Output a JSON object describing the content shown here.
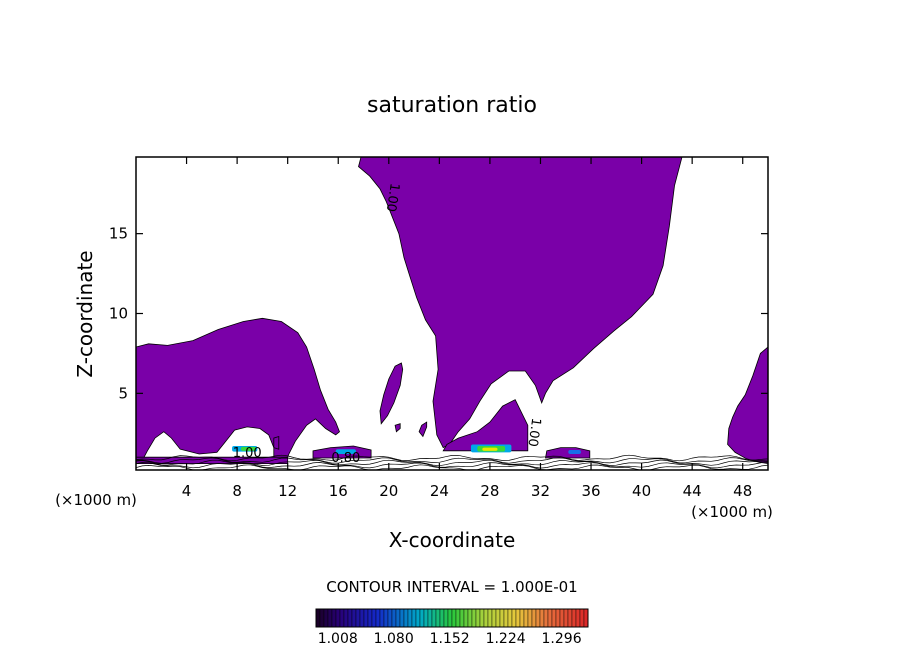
{
  "chart_data": {
    "type": "contour",
    "title": "saturation ratio",
    "xlabel": "X-coordinate",
    "ylabel": "Z-coordinate",
    "x_unit_left": "(×1000 m)",
    "x_unit_right": "(×1000 m)",
    "xlim": [
      0,
      50
    ],
    "ylim": [
      0.2,
      19.8
    ],
    "x_ticks": [
      4,
      8,
      12,
      16,
      20,
      24,
      28,
      32,
      36,
      40,
      44,
      48
    ],
    "y_ticks": [
      5,
      10,
      15
    ],
    "grid": false,
    "fill_color": "#7a00a8",
    "contour_interval_label": "CONTOUR INTERVAL = 1.000E-01",
    "colorbar_ticks": [
      "1.008",
      "1.080",
      "1.152",
      "1.224",
      "1.296"
    ],
    "colorbar_range": [
      0.98,
      1.33
    ],
    "contour_labels": [
      {
        "text": "1.00",
        "x": 20.0,
        "z": 17.3,
        "rotate": 98
      },
      {
        "text": "1.00",
        "x": 31.2,
        "z": 2.6,
        "rotate": 98
      },
      {
        "text": "1.00",
        "x": 8.8,
        "z": 1.0,
        "rotate": 0
      },
      {
        "text": "0.80",
        "x": 16.6,
        "z": 0.7,
        "rotate": 0
      }
    ],
    "regions": [
      {
        "name": "left-cloud",
        "points": [
          [
            0.0,
            0.6
          ],
          [
            0.0,
            7.9
          ],
          [
            1.0,
            8.1
          ],
          [
            2.5,
            8.0
          ],
          [
            4.5,
            8.3
          ],
          [
            6.5,
            9.0
          ],
          [
            8.5,
            9.5
          ],
          [
            10.0,
            9.7
          ],
          [
            11.5,
            9.5
          ],
          [
            12.8,
            8.8
          ],
          [
            13.5,
            7.9
          ],
          [
            14.1,
            6.5
          ],
          [
            14.6,
            5.2
          ],
          [
            15.2,
            4.0
          ],
          [
            15.8,
            3.2
          ],
          [
            16.1,
            2.6
          ],
          [
            15.8,
            2.4
          ],
          [
            15.0,
            2.8
          ],
          [
            14.2,
            3.4
          ],
          [
            13.5,
            3.0
          ],
          [
            12.6,
            2.0
          ],
          [
            12.1,
            1.2
          ],
          [
            11.8,
            0.6
          ],
          [
            10.9,
            0.6
          ],
          [
            10.9,
            1.6
          ],
          [
            10.5,
            2.4
          ],
          [
            9.8,
            2.8
          ],
          [
            8.8,
            2.9
          ],
          [
            7.8,
            2.7
          ],
          [
            7.0,
            1.9
          ],
          [
            6.4,
            1.3
          ],
          [
            5.0,
            1.2
          ],
          [
            3.5,
            1.5
          ],
          [
            2.8,
            2.2
          ],
          [
            2.2,
            2.6
          ],
          [
            1.5,
            2.2
          ],
          [
            0.9,
            1.4
          ],
          [
            0.5,
            0.8
          ]
        ]
      },
      {
        "name": "left-cloud-base",
        "points": [
          [
            0.0,
            0.6
          ],
          [
            12.0,
            0.6
          ],
          [
            12.0,
            1.0
          ],
          [
            0.0,
            1.0
          ]
        ]
      },
      {
        "name": "central-column",
        "points": [
          [
            17.8,
            19.8
          ],
          [
            43.2,
            19.8
          ],
          [
            42.6,
            18.0
          ],
          [
            42.2,
            15.5
          ],
          [
            41.7,
            13.0
          ],
          [
            40.9,
            11.2
          ],
          [
            39.2,
            9.8
          ],
          [
            37.8,
            8.9
          ],
          [
            36.2,
            7.8
          ],
          [
            34.6,
            6.6
          ],
          [
            33.0,
            5.8
          ],
          [
            32.4,
            5.0
          ],
          [
            32.1,
            4.4
          ],
          [
            31.6,
            5.5
          ],
          [
            30.8,
            6.4
          ],
          [
            29.5,
            6.4
          ],
          [
            28.1,
            5.6
          ],
          [
            27.2,
            4.5
          ],
          [
            26.4,
            3.4
          ],
          [
            25.5,
            2.6
          ],
          [
            24.8,
            1.8
          ],
          [
            24.3,
            1.6
          ],
          [
            23.8,
            2.4
          ],
          [
            23.5,
            4.5
          ],
          [
            23.9,
            6.5
          ],
          [
            23.7,
            8.6
          ],
          [
            22.9,
            9.6
          ],
          [
            22.2,
            11.0
          ],
          [
            21.6,
            12.5
          ],
          [
            21.2,
            13.5
          ],
          [
            20.8,
            15.0
          ],
          [
            20.3,
            16.0
          ],
          [
            19.8,
            17.0
          ],
          [
            19.3,
            17.8
          ],
          [
            18.5,
            18.6
          ],
          [
            17.6,
            19.2
          ]
        ]
      },
      {
        "name": "central-base",
        "points": [
          [
            24.3,
            1.4
          ],
          [
            31.0,
            1.4
          ],
          [
            31.0,
            3.0
          ],
          [
            30.0,
            4.6
          ],
          [
            29.0,
            4.2
          ],
          [
            28.0,
            3.2
          ],
          [
            27.0,
            2.6
          ],
          [
            25.5,
            2.2
          ],
          [
            24.6,
            1.8
          ]
        ]
      },
      {
        "name": "blob-19",
        "points": [
          [
            19.4,
            3.1
          ],
          [
            19.9,
            3.6
          ],
          [
            20.4,
            4.4
          ],
          [
            20.9,
            5.5
          ],
          [
            21.1,
            6.5
          ],
          [
            21.0,
            6.9
          ],
          [
            20.5,
            6.7
          ],
          [
            20.0,
            5.9
          ],
          [
            19.6,
            4.9
          ],
          [
            19.3,
            3.9
          ]
        ]
      },
      {
        "name": "blob-22",
        "points": [
          [
            22.7,
            2.3
          ],
          [
            23.0,
            2.9
          ],
          [
            23.0,
            3.2
          ],
          [
            22.6,
            3.0
          ],
          [
            22.4,
            2.6
          ]
        ]
      },
      {
        "name": "blob-21",
        "points": [
          [
            20.6,
            2.6
          ],
          [
            20.9,
            2.8
          ],
          [
            20.9,
            3.1
          ],
          [
            20.5,
            3.0
          ]
        ]
      },
      {
        "name": "blob-13",
        "points": [
          [
            10.9,
            1.6
          ],
          [
            11.3,
            1.5
          ],
          [
            11.3,
            2.3
          ],
          [
            10.9,
            2.2
          ]
        ]
      },
      {
        "name": "right-cloud",
        "points": [
          [
            50.0,
            0.6
          ],
          [
            50.0,
            7.9
          ],
          [
            49.4,
            7.5
          ],
          [
            48.8,
            6.1
          ],
          [
            48.2,
            4.9
          ],
          [
            47.6,
            4.2
          ],
          [
            47.2,
            3.5
          ],
          [
            46.9,
            2.8
          ],
          [
            46.8,
            1.8
          ],
          [
            47.4,
            1.3
          ],
          [
            48.3,
            0.9
          ],
          [
            49.2,
            0.7
          ]
        ]
      },
      {
        "name": "low-strip-16",
        "points": [
          [
            14.0,
            0.95
          ],
          [
            18.6,
            0.95
          ],
          [
            18.6,
            1.45
          ],
          [
            17.2,
            1.7
          ],
          [
            15.4,
            1.6
          ],
          [
            14.0,
            1.4
          ]
        ]
      },
      {
        "name": "low-strip-34",
        "points": [
          [
            32.4,
            0.95
          ],
          [
            35.9,
            0.95
          ],
          [
            35.9,
            1.4
          ],
          [
            34.8,
            1.6
          ],
          [
            33.6,
            1.6
          ],
          [
            32.5,
            1.4
          ]
        ]
      }
    ],
    "color_patches": [
      {
        "x": 7.6,
        "z": 1.35,
        "w": 2.0,
        "h": 0.35,
        "color": "#00a8e8"
      },
      {
        "x": 8.3,
        "z": 1.4,
        "w": 1.2,
        "h": 0.25,
        "color": "#38d838"
      },
      {
        "x": 26.5,
        "z": 1.3,
        "w": 3.2,
        "h": 0.5,
        "color": "#00a8e8"
      },
      {
        "x": 27.0,
        "z": 1.35,
        "w": 2.2,
        "h": 0.35,
        "color": "#38d838"
      },
      {
        "x": 27.4,
        "z": 1.4,
        "w": 1.2,
        "h": 0.2,
        "color": "#e8e800"
      },
      {
        "x": 15.8,
        "z": 1.2,
        "w": 1.6,
        "h": 0.3,
        "color": "#00a8e8"
      },
      {
        "x": 34.2,
        "z": 1.2,
        "w": 1.0,
        "h": 0.25,
        "color": "#1870e8"
      }
    ]
  }
}
